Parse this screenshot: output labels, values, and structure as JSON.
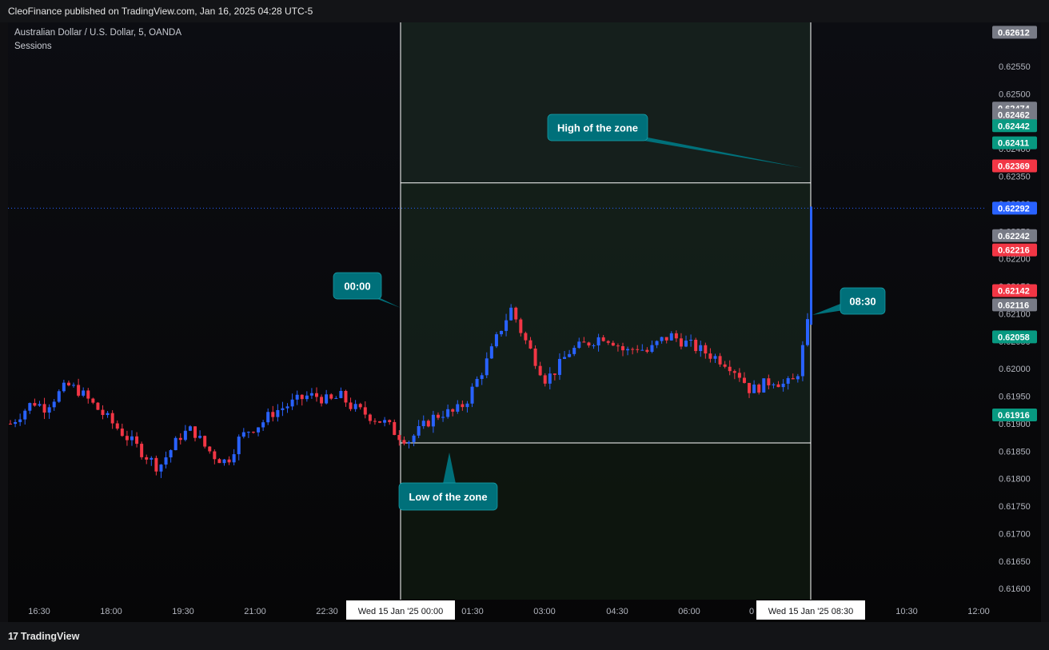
{
  "header": {
    "publisher": "CleoFinance published on TradingView.com, Jan 16, 2025 04:28 UTC-5"
  },
  "legend": {
    "symbol": "Australian Dollar / U.S. Dollar, 5, OANDA",
    "indicator": "Sessions"
  },
  "footer": {
    "brand": "TradingView"
  },
  "colors": {
    "up": "#2962ff",
    "down": "#f23645",
    "callout": "#00707a",
    "zone_line": "#ffffff",
    "zone_fill": "#14201a"
  },
  "chart_data": {
    "type": "candlestick",
    "title": "",
    "ylim": [
      0.6158,
      0.6263
    ],
    "y_ticks": [
      "0.62550",
      "0.62500",
      "0.62450",
      "0.62400",
      "0.62350",
      "0.62300",
      "0.62250",
      "0.62200",
      "0.62150",
      "0.62100",
      "0.62050",
      "0.62000",
      "0.61950",
      "0.61900",
      "0.61850",
      "0.61800",
      "0.61750",
      "0.61700",
      "0.61650",
      "0.61600"
    ],
    "x_ticks": [
      "16:30",
      "18:00",
      "19:30",
      "21:00",
      "22:30",
      "01:30",
      "03:00",
      "04:30",
      "06:00",
      "0",
      "10:30",
      "12:00"
    ],
    "zone": {
      "start_label": "Wed 15 Jan '25   00:00",
      "end_label": "Wed 15 Jan '25   08:30",
      "high": 0.62338,
      "low": 0.61865
    },
    "current_price": 0.62292,
    "price_labels": [
      {
        "value": "0.62612",
        "color": "#787b86"
      },
      {
        "value": "0.62474",
        "color": "#787b86"
      },
      {
        "value": "0.62462",
        "color": "#787b86"
      },
      {
        "value": "0.62442",
        "color": "#089981"
      },
      {
        "value": "0.62411",
        "color": "#089981"
      },
      {
        "value": "0.62369",
        "color": "#f23645"
      },
      {
        "value": "0.62292",
        "color": "#2962ff"
      },
      {
        "value": "0.62242",
        "color": "#787b86"
      },
      {
        "value": "0.62216",
        "color": "#f23645"
      },
      {
        "value": "0.62142",
        "color": "#f23645"
      },
      {
        "value": "0.62116",
        "color": "#787b86"
      },
      {
        "value": "0.62058",
        "color": "#089981"
      },
      {
        "value": "0.61916",
        "color": "#089981"
      }
    ],
    "annotations": [
      {
        "text": "High of the zone"
      },
      {
        "text": "00:00"
      },
      {
        "text": "08:30"
      },
      {
        "text": "Low of the zone"
      }
    ],
    "close_path": [
      0.619,
      0.6192,
      0.6194,
      0.6193,
      0.6195,
      0.6197,
      0.6196,
      0.6194,
      0.6192,
      0.619,
      0.6188,
      0.6186,
      0.6184,
      0.6182,
      0.6185,
      0.6188,
      0.6189,
      0.6186,
      0.6184,
      0.6183,
      0.6187,
      0.6189,
      0.619,
      0.6192,
      0.6193,
      0.6194,
      0.6195,
      0.6195,
      0.6194,
      0.6195,
      0.6193,
      0.6192,
      0.6191,
      0.619,
      0.6188,
      0.6187,
      0.6189,
      0.6191,
      0.6192,
      0.6192,
      0.6194,
      0.6198,
      0.6202,
      0.6207,
      0.6211,
      0.6206,
      0.6202,
      0.6198,
      0.62,
      0.6203,
      0.6204,
      0.6205,
      0.6206,
      0.6205,
      0.6203,
      0.6204,
      0.6203,
      0.6205,
      0.6206,
      0.6205,
      0.6204,
      0.6203,
      0.6202,
      0.6201,
      0.6199,
      0.6196,
      0.6197,
      0.6198,
      0.6197,
      0.6198,
      0.6208
    ]
  }
}
